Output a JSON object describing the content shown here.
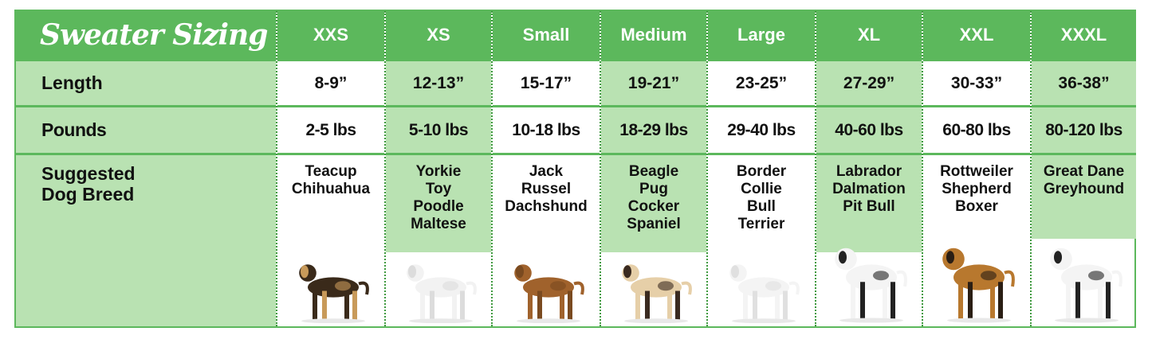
{
  "title": "Sweater Sizing",
  "row_labels": {
    "length": "Length",
    "pounds": "Pounds",
    "breed_line1": "Suggested",
    "breed_line2": "Dog Breed"
  },
  "colors": {
    "header_green": "#5cb85c",
    "light_green": "#b9e2b2",
    "white": "#ffffff"
  },
  "sizes": [
    {
      "size": "XXS",
      "length": "8-9”",
      "pounds": "2-5 lbs",
      "breeds": [
        "Teacup",
        "Chihuahua"
      ],
      "dog": "yorkie-photo"
    },
    {
      "size": "XS",
      "length": "12-13”",
      "pounds": "5-10 lbs",
      "breeds": [
        "Yorkie",
        "Toy",
        "Poodle",
        "Maltese"
      ],
      "dog": "poodle-photo"
    },
    {
      "size": "Small",
      "length": "15-17”",
      "pounds": "10-18 lbs",
      "breeds": [
        "Jack",
        "Russel",
        "Dachshund"
      ],
      "dog": "dachshund-photo"
    },
    {
      "size": "Medium",
      "length": "19-21”",
      "pounds": "18-29 lbs",
      "breeds": [
        "Beagle",
        "Pug",
        "Cocker",
        "Spaniel"
      ],
      "dog": "pug-photo"
    },
    {
      "size": "Large",
      "length": "23-25”",
      "pounds": "29-40 lbs",
      "breeds": [
        "Border",
        "Collie",
        "Bull",
        "Terrier"
      ],
      "dog": "bull-terrier-photo"
    },
    {
      "size": "XL",
      "length": "27-29”",
      "pounds": "40-60 lbs",
      "breeds": [
        "Labrador",
        "Dalmation",
        "Pit Bull"
      ],
      "dog": "dalmatian-photo"
    },
    {
      "size": "XXL",
      "length": "30-33”",
      "pounds": "60-80 lbs",
      "breeds": [
        "Rottweiler",
        "Shepherd",
        "Boxer"
      ],
      "dog": "german-shepherd-photo"
    },
    {
      "size": "XXXL",
      "length": "36-38”",
      "pounds": "80-120 lbs",
      "breeds": [
        "Great Dane",
        "Greyhound"
      ],
      "dog": "greyhound-photo"
    }
  ]
}
